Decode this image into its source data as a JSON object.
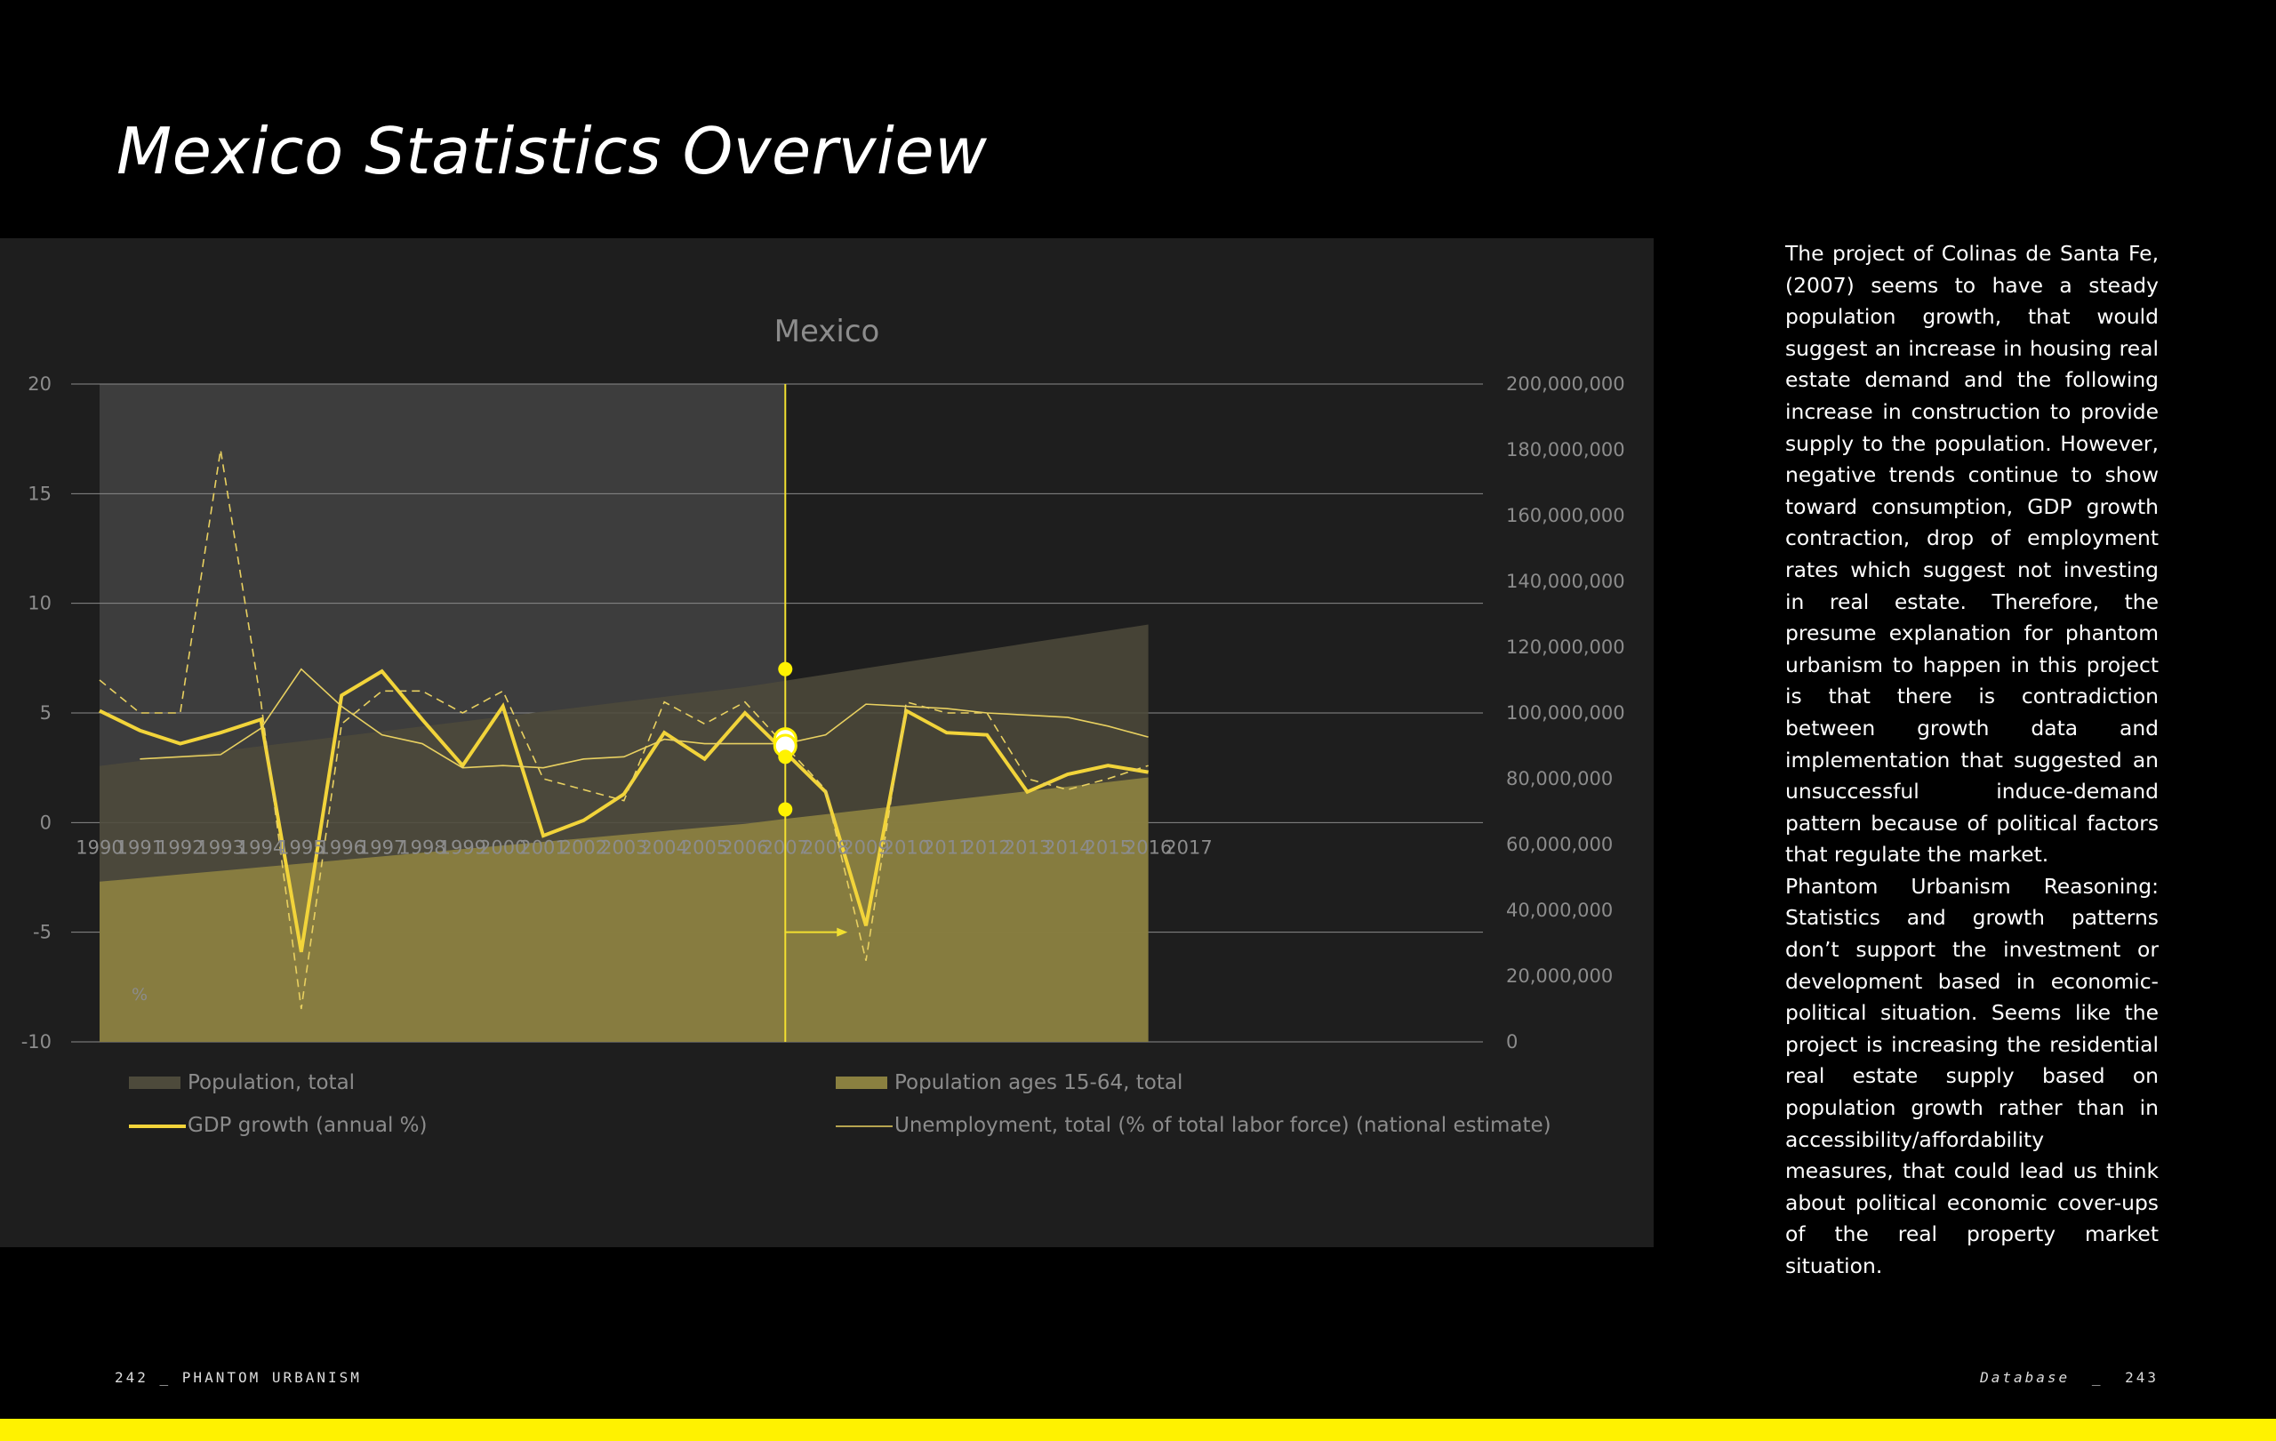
{
  "page": {
    "title": "Mexico Statistics Overview",
    "footer_left": "242 _ PHANTOM URBANISM",
    "footer_section": "Database",
    "footer_sep": "_",
    "footer_page": "243",
    "accent_color": "#fff200",
    "body_paragraphs": [
      "The project of Colinas de Santa Fe, (2007) seems to have a steady population growth, that would suggest an increase in housing real estate demand and the following increase in construction to provide supply to the population. However, negative trends continue to show toward consumption, GDP growth contraction, drop of employment rates which suggest not investing in real estate. Therefore, the presume explanation for phantom urbanism to happen in this project is that there is contradiction between growth data and implementation that suggested an unsuccessful induce-demand pattern because of political factors that regulate the market.",
      "Phantom Urbanism Reasoning: Statistics and growth patterns don’t support the investment or development based in economic-political situation. Seems like the project is increasing the residential real estate supply based on population growth rather than in accessibility/affordability measures, that could lead us think about political economic cover-ups of the real property market situation."
    ]
  },
  "chart_data": {
    "type": "line",
    "title": "Mexico",
    "categories": [
      "1990",
      "1991",
      "1992",
      "1993",
      "1994",
      "1995",
      "1996",
      "1997",
      "1998",
      "1999",
      "2000",
      "2001",
      "2002",
      "2003",
      "2004",
      "2005",
      "2006",
      "2007",
      "2008",
      "2009",
      "2010",
      "2011",
      "2012",
      "2013",
      "2014",
      "2015",
      "2016",
      "2017"
    ],
    "left_axis": {
      "min": -10,
      "max": 20,
      "ticks": [
        "20",
        "15",
        "10",
        "5",
        "0",
        "-5",
        "-10"
      ],
      "unit_label": "%"
    },
    "right_axis": {
      "min": 0,
      "max": 200000000,
      "ticks": [
        "200,000,000",
        "180,000,000",
        "160,000,000",
        "140,000,000",
        "120,000,000",
        "100,000,000",
        "80,000,000",
        "60,000,000",
        "40,000,000",
        "20,000,000",
        "0"
      ]
    },
    "series": [
      {
        "name": "Population, total",
        "axis": "right",
        "type": "area",
        "color": "#4d4a3b",
        "values": [
          83900000,
          85400000,
          86900000,
          88400000,
          89900000,
          91400000,
          92900000,
          94400000,
          95900000,
          97400000,
          98900000,
          100400000,
          101900000,
          103400000,
          104900000,
          106400000,
          107900000,
          109800000,
          111700000,
          113600000,
          115500000,
          117400000,
          119300000,
          121200000,
          123100000,
          125000000,
          126900000,
          null
        ]
      },
      {
        "name": "Population ages 15-64, total",
        "axis": "right",
        "type": "area",
        "color": "#8a8040",
        "values": [
          48700000,
          49800000,
          50900000,
          52000000,
          53100000,
          54200000,
          55300000,
          56400000,
          57500000,
          58600000,
          59700000,
          60800000,
          61900000,
          63000000,
          64100000,
          65200000,
          66300000,
          67800000,
          69200000,
          70600000,
          72000000,
          73400000,
          74800000,
          76200000,
          77600000,
          79000000,
          80400000,
          null
        ]
      },
      {
        "name": "GDP growth (annual %)",
        "axis": "left",
        "type": "line",
        "color": "#f2d43a",
        "values": [
          5.1,
          4.2,
          3.6,
          4.1,
          4.7,
          -5.9,
          5.8,
          6.9,
          4.7,
          2.6,
          5.3,
          -0.6,
          0.1,
          1.3,
          4.1,
          2.9,
          5.0,
          3.2,
          1.4,
          -4.7,
          5.1,
          4.1,
          4.0,
          1.4,
          2.2,
          2.6,
          2.3,
          null
        ]
      },
      {
        "name": "Unemployment, total (% of total labor force) (national estimate)",
        "axis": "left",
        "type": "line",
        "color": "#e8d060",
        "values": [
          null,
          2.9,
          3.0,
          3.1,
          4.3,
          7.0,
          5.3,
          4.0,
          3.6,
          2.5,
          2.6,
          2.5,
          2.9,
          3.0,
          3.8,
          3.6,
          3.6,
          3.6,
          4.0,
          5.4,
          5.3,
          5.2,
          5.0,
          4.9,
          4.8,
          4.4,
          3.9,
          null
        ]
      },
      {
        "name": "GDP growth (dashed overlay)",
        "axis": "left",
        "type": "line",
        "style": "dashed",
        "legend": false,
        "color": "#e8d060",
        "values": [
          6.5,
          5.0,
          5.0,
          17.0,
          5.5,
          -8.5,
          4.5,
          6.0,
          6.0,
          5.0,
          6.0,
          2.0,
          1.5,
          1.0,
          5.5,
          4.5,
          5.5,
          3.5,
          1.5,
          -6.3,
          5.5,
          5.0,
          5.0,
          2.0,
          1.5,
          2.0,
          2.6,
          null
        ]
      }
    ],
    "highlight_year": "2007",
    "highlight_values": [
      7.0,
      3.8,
      3.5,
      3.0,
      0.6
    ],
    "legend_position": "bottom",
    "grid": true
  }
}
